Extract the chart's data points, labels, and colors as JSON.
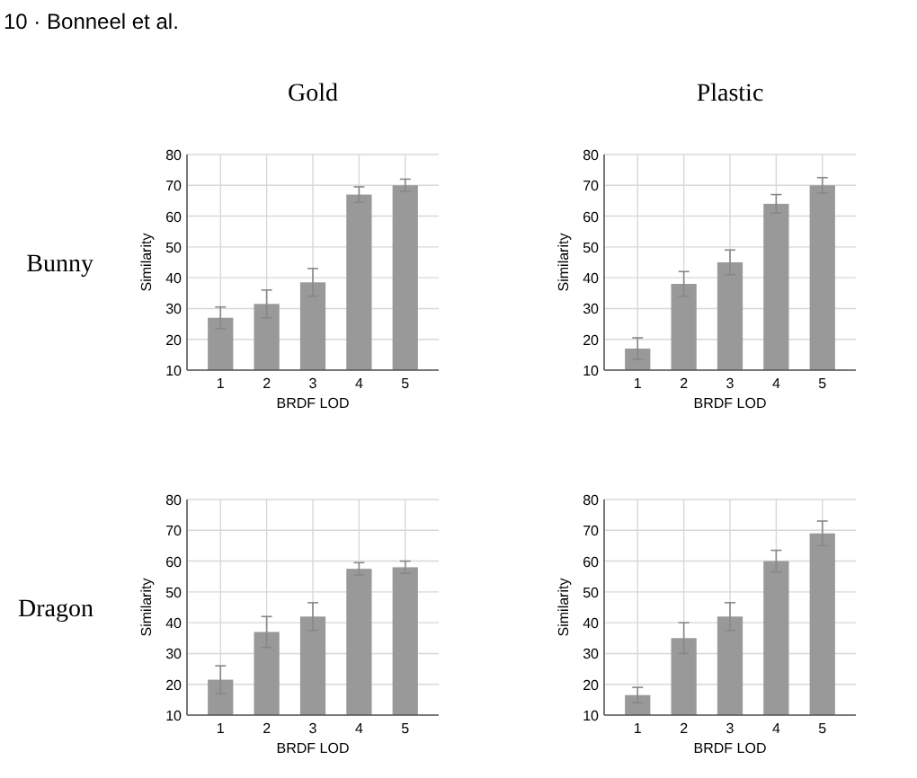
{
  "chart_data": [
    {
      "type": "other",
      "annotations": [
        "10 · Bonneel et al."
      ]
    },
    {
      "type": "bar",
      "title": "Gold",
      "annotations": [
        "Bunny"
      ],
      "xlabel": "BRDF LOD",
      "ylabel": "Similarity",
      "categories": [
        "1",
        "2",
        "3",
        "4",
        "5"
      ],
      "values": [
        27,
        31.5,
        38.5,
        67,
        70
      ],
      "errors": [
        3.5,
        4.5,
        4.5,
        2.5,
        2
      ],
      "color": "#999999",
      "ylim": [
        10,
        80
      ],
      "yticks": [
        10,
        20,
        30,
        40,
        50,
        60,
        70,
        80
      ],
      "grid": true
    },
    {
      "type": "bar",
      "title": "Plastic",
      "xlabel": "BRDF LOD",
      "ylabel": "Similarity",
      "categories": [
        "1",
        "2",
        "3",
        "4",
        "5"
      ],
      "values": [
        17,
        38,
        45,
        64,
        70
      ],
      "errors": [
        3.5,
        4,
        4,
        3,
        2.5
      ],
      "color": "#999999",
      "ylim": [
        10,
        80
      ],
      "yticks": [
        10,
        20,
        30,
        40,
        50,
        60,
        70,
        80
      ],
      "grid": true
    },
    {
      "type": "bar",
      "annotations": [
        "Dragon"
      ],
      "xlabel": "BRDF LOD",
      "ylabel": "Similarity",
      "categories": [
        "1",
        "2",
        "3",
        "4",
        "5"
      ],
      "values": [
        21.5,
        37,
        42,
        57.5,
        58
      ],
      "errors": [
        4.5,
        5,
        4.5,
        2,
        2
      ],
      "color": "#999999",
      "ylim": [
        10,
        80
      ],
      "yticks": [
        10,
        20,
        30,
        40,
        50,
        60,
        70,
        80
      ],
      "grid": true
    },
    {
      "type": "bar",
      "xlabel": "BRDF LOD",
      "ylabel": "Similarity",
      "categories": [
        "1",
        "2",
        "3",
        "4",
        "5"
      ],
      "values": [
        16.5,
        35,
        42,
        60,
        69
      ],
      "errors": [
        2.5,
        5,
        4.5,
        3.5,
        4
      ],
      "color": "#999999",
      "ylim": [
        10,
        80
      ],
      "yticks": [
        10,
        20,
        30,
        40,
        50,
        60,
        70,
        80
      ],
      "grid": true
    }
  ]
}
